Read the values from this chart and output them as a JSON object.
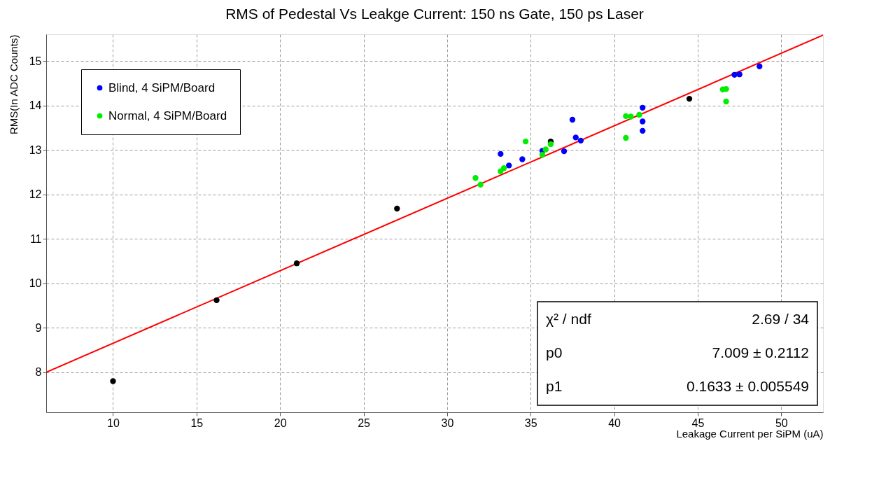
{
  "chart_data": {
    "type": "scatter",
    "title": "RMS of Pedestal Vs Leakge Current: 150 ns Gate, 150 ps Laser",
    "xlabel": "Leakage Current per SiPM (uA)",
    "ylabel": "RMS(In ADC Counts)",
    "xlim": [
      6,
      52.5
    ],
    "ylim": [
      7.1,
      15.6
    ],
    "xticks": [
      10,
      15,
      20,
      25,
      30,
      35,
      40,
      45,
      50
    ],
    "yticks": [
      8,
      9,
      10,
      11,
      12,
      13,
      14,
      15
    ],
    "grid": true,
    "legend": "top left",
    "marker": "circle",
    "series": [
      {
        "type": "line",
        "marker": "none",
        "color": "#ff0000",
        "x": [
          6,
          52.5
        ],
        "values": [
          8.0,
          15.58
        ]
      },
      {
        "color": "#000000",
        "x": [
          10,
          16.2,
          21,
          27,
          36.2,
          44.5
        ],
        "values": [
          7.8,
          9.62,
          10.45,
          11.68,
          13.19,
          14.15
        ]
      },
      {
        "name": "Blind, 4 SiPM/Board",
        "color": "#0000ff",
        "x": [
          33.2,
          33.7,
          34.5,
          35.7,
          37.0,
          37.5,
          37.7,
          38.0,
          41.7,
          41.7,
          41.7,
          47.2,
          47.5,
          48.7
        ],
        "values": [
          12.91,
          12.65,
          12.79,
          12.98,
          12.97,
          13.68,
          13.28,
          13.21,
          13.95,
          13.64,
          13.43,
          14.69,
          14.7,
          14.88
        ]
      },
      {
        "name": "Normal, 4 SiPM/Board",
        "color": "#00ee00",
        "x": [
          31.7,
          32.0,
          33.2,
          33.4,
          34.7,
          35.7,
          35.9,
          36.2,
          40.7,
          40.7,
          41.0,
          41.5,
          46.5,
          46.7,
          46.7
        ],
        "values": [
          12.37,
          12.22,
          12.52,
          12.59,
          13.19,
          12.89,
          13.01,
          13.13,
          13.27,
          13.76,
          13.75,
          13.79,
          14.36,
          14.37,
          14.09
        ]
      }
    ],
    "annotations": [
      "χ² / ndf",
      "2.69 / 34",
      "p0",
      "7.009 ± 0.2112",
      "p1",
      "0.1633 ± 0.005549"
    ]
  }
}
